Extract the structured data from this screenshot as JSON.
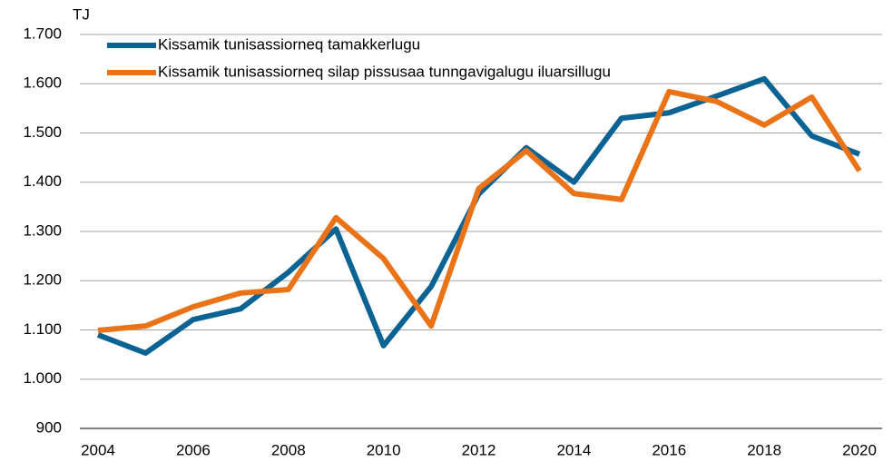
{
  "chart_data": {
    "type": "line",
    "y_label": "TJ",
    "x": [
      2004,
      2005,
      2006,
      2007,
      2008,
      2009,
      2010,
      2011,
      2012,
      2013,
      2014,
      2015,
      2016,
      2017,
      2018,
      2019,
      2020
    ],
    "series": [
      {
        "name": "Kissamik tunisassiorneq tamakkerlugu",
        "color": "#0b6394",
        "values": [
          1090,
          1053,
          1121,
          1143,
          1217,
          1305,
          1068,
          1188,
          1376,
          1470,
          1400,
          1530,
          1541,
          1575,
          1610,
          1494,
          1457
        ]
      },
      {
        "name": "Kissamik tunisassiorneq silap pissusaa tunngavigalugu iluarsillugu",
        "color": "#ea7317",
        "values": [
          1099,
          1108,
          1147,
          1175,
          1182,
          1328,
          1245,
          1108,
          1387,
          1464,
          1377,
          1365,
          1584,
          1564,
          1516,
          1573,
          1423
        ]
      }
    ],
    "xlim": [
      2004,
      2020
    ],
    "xticks": [
      2004,
      2006,
      2008,
      2010,
      2012,
      2014,
      2016,
      2018,
      2020
    ],
    "ylim": [
      900,
      1700
    ],
    "yticks": [
      {
        "value": 900,
        "label": "900"
      },
      {
        "value": 1000,
        "label": "1.000"
      },
      {
        "value": 1100,
        "label": "1.100"
      },
      {
        "value": 1200,
        "label": "1.200"
      },
      {
        "value": 1300,
        "label": "1.300"
      },
      {
        "value": 1400,
        "label": "1.400"
      },
      {
        "value": 1500,
        "label": "1.500"
      },
      {
        "value": 1600,
        "label": "1.600"
      },
      {
        "value": 1700,
        "label": "1.700"
      }
    ],
    "grid": true,
    "legend": "top-left"
  }
}
